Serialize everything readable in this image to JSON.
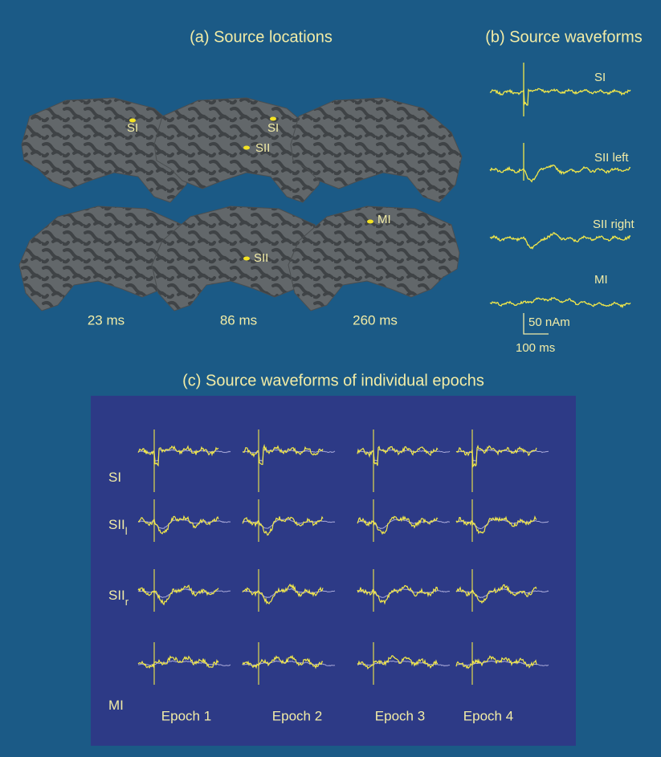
{
  "panel_a": {
    "title": "(a) Source locations",
    "brain_labels": [
      "SI",
      "SI",
      "SII",
      "MI",
      "SII"
    ],
    "times": [
      "23 ms",
      "86 ms",
      "260 ms"
    ]
  },
  "panel_b": {
    "title": "(b) Source waveforms",
    "traces": [
      "SI",
      "SII left",
      "SII right",
      "MI"
    ],
    "scale_amplitude": "50 nAm",
    "scale_time": "100 ms"
  },
  "panel_c": {
    "title": "(c) Source waveforms of individual epochs",
    "rows": [
      {
        "text": "SI"
      },
      {
        "text": "SII",
        "subscript": "l"
      },
      {
        "text": "SII",
        "subscript": "r"
      },
      {
        "text": "MI"
      }
    ],
    "columns": [
      "Epoch 1",
      "Epoch 2",
      "Epoch 3",
      "Epoch 4"
    ]
  }
}
